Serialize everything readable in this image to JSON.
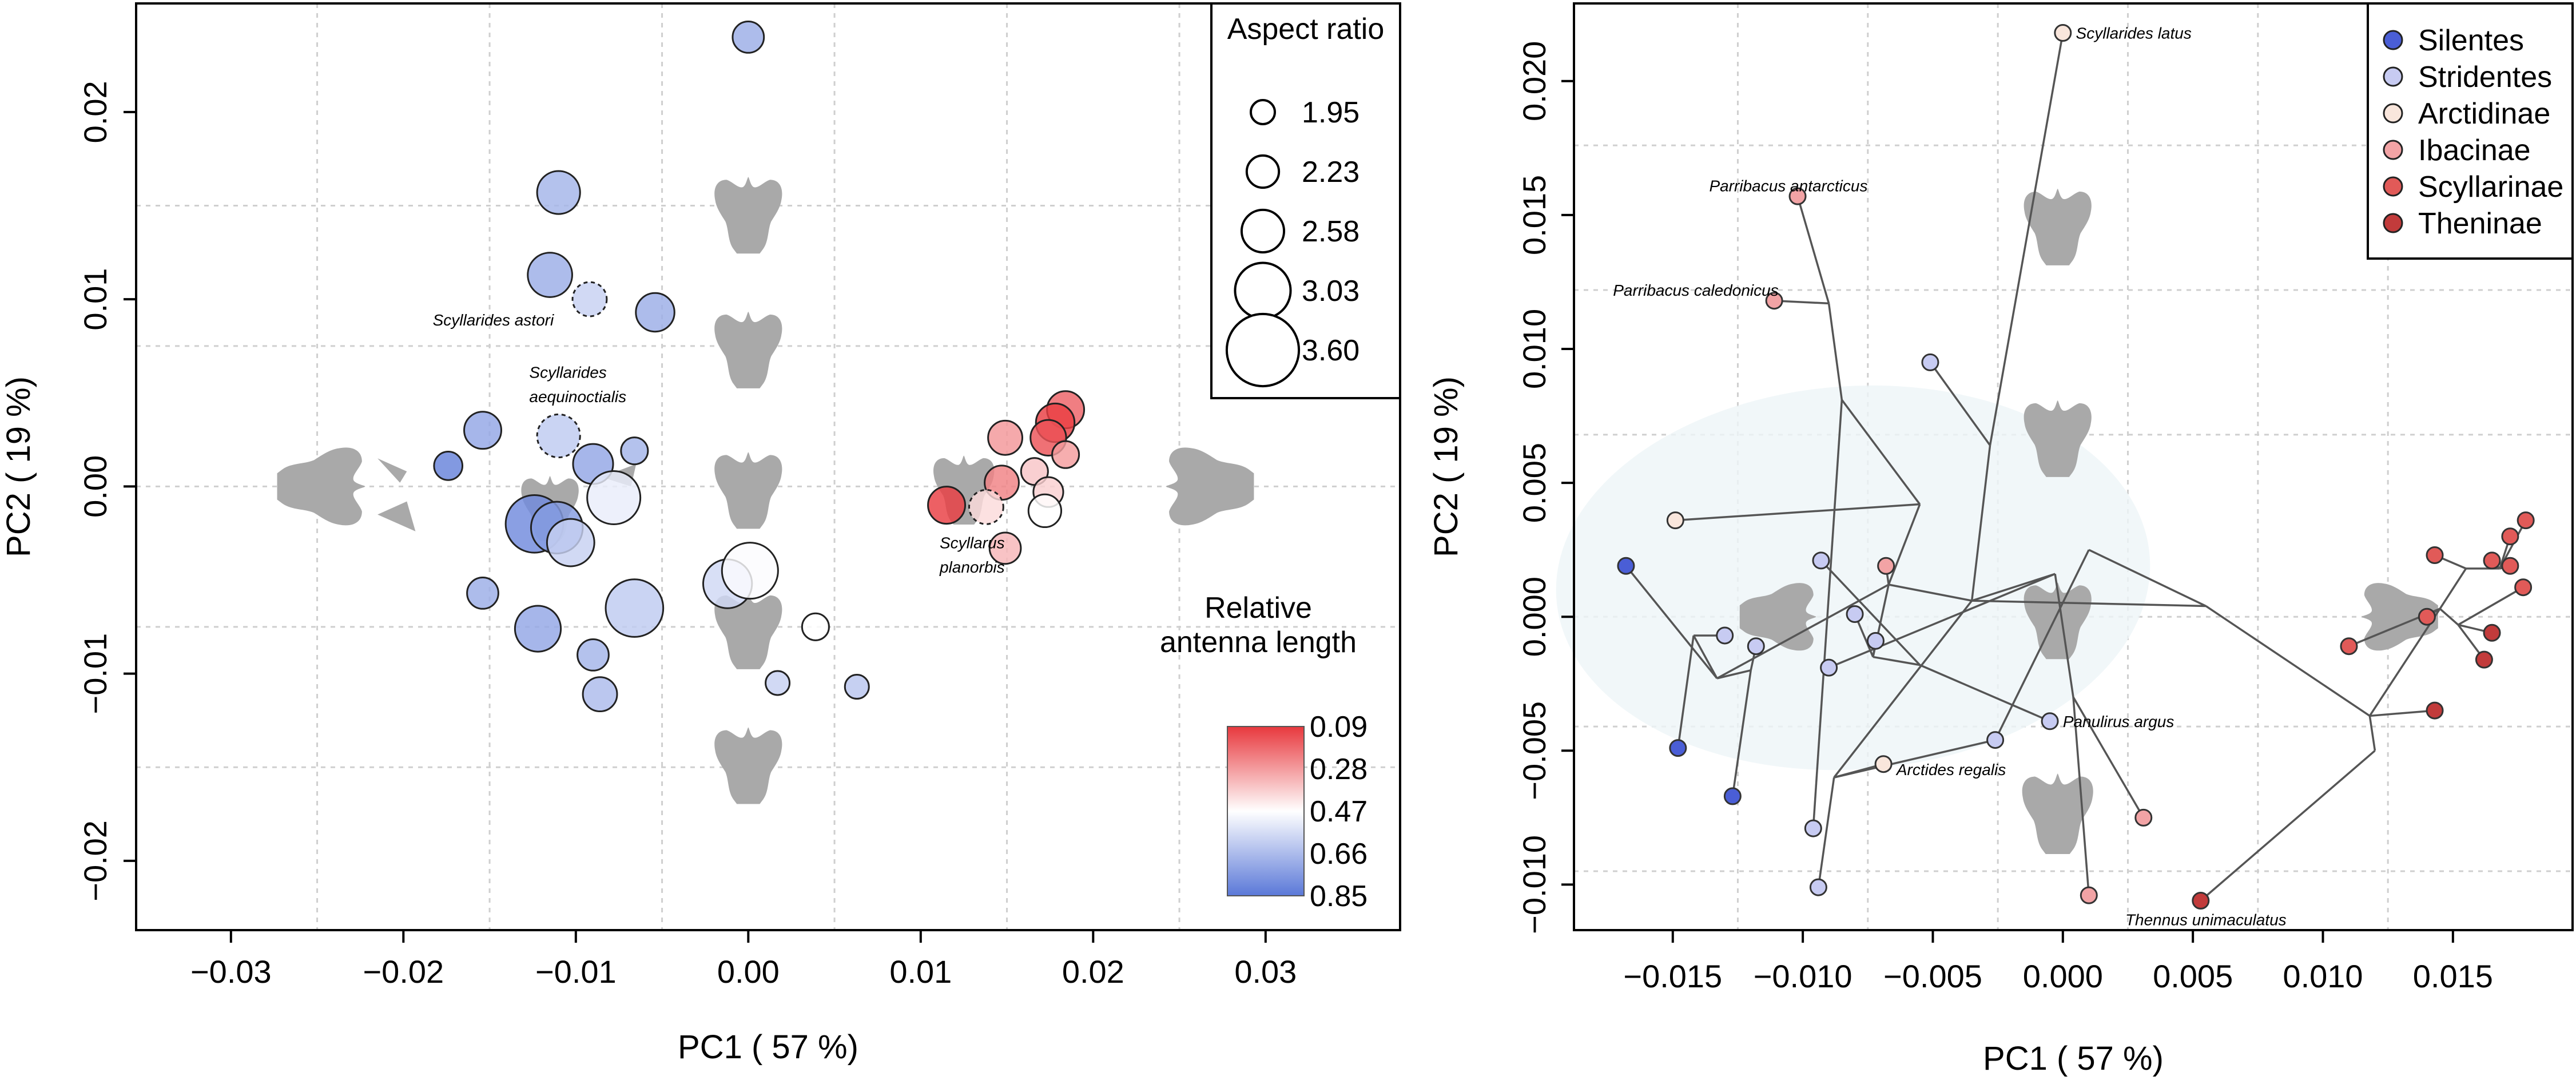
{
  "chart_data": [
    {
      "type": "scatter",
      "title": "",
      "xlabel": "PC1 ( 57 %)",
      "ylabel": "PC2 ( 19 %)",
      "xlim": [
        -0.0355,
        0.0378
      ],
      "ylim": [
        -0.0237,
        0.0258
      ],
      "xticks": [
        -0.03,
        -0.02,
        -0.01,
        0.0,
        0.01,
        0.02,
        0.03
      ],
      "xtick_labels": [
        "−0.03",
        "−0.02",
        "−0.01",
        "0.00",
        "0.01",
        "0.02",
        "0.03"
      ],
      "yticks": [
        -0.02,
        -0.01,
        0.0,
        0.01,
        0.02
      ],
      "ytick_labels": [
        "−0.02",
        "−0.01",
        "0.00",
        "0.01",
        "0.02"
      ],
      "grid": true,
      "size_legend": {
        "title": "Aspect ratio",
        "placement": "top-right",
        "values": [
          1.95,
          2.23,
          2.58,
          3.03,
          3.6
        ],
        "labels": [
          "1.95",
          "2.23",
          "2.58",
          "3.03",
          "3.60"
        ]
      },
      "color_legend": {
        "title_line1": "Relative",
        "title_line2": "antenna length",
        "placement": "bottom-right",
        "labels": [
          "0.09",
          "0.28",
          "0.47",
          "0.66",
          "0.85"
        ],
        "low_color": "#e8383d",
        "mid_color": "#ffffff",
        "high_color": "#5a78d8"
      },
      "points": [
        {
          "x": 0.0,
          "y": 0.024,
          "ar": 2.2,
          "al": 0.7
        },
        {
          "x": -0.011,
          "y": 0.0157,
          "ar": 2.6,
          "al": 0.68
        },
        {
          "x": -0.0115,
          "y": 0.0113,
          "ar": 2.65,
          "al": 0.7
        },
        {
          "x": -0.0092,
          "y": 0.01,
          "ar": 2.3,
          "al": 0.6,
          "dashed": true
        },
        {
          "x": -0.0054,
          "y": 0.0093,
          "ar": 2.45,
          "al": 0.7
        },
        {
          "x": -0.0154,
          "y": 0.003,
          "ar": 2.4,
          "al": 0.72
        },
        {
          "x": -0.0174,
          "y": 0.0011,
          "ar": 2.1,
          "al": 0.82
        },
        {
          "x": -0.011,
          "y": 0.0027,
          "ar": 2.6,
          "al": 0.62,
          "dashed": true
        },
        {
          "x": -0.009,
          "y": 0.0012,
          "ar": 2.5,
          "al": 0.72
        },
        {
          "x": -0.0066,
          "y": 0.0019,
          "ar": 2.05,
          "al": 0.68
        },
        {
          "x": -0.0124,
          "y": -0.002,
          "ar": 3.1,
          "al": 0.8
        },
        {
          "x": -0.0111,
          "y": -0.0022,
          "ar": 2.9,
          "al": 0.75
        },
        {
          "x": -0.0103,
          "y": -0.003,
          "ar": 2.75,
          "al": 0.6
        },
        {
          "x": -0.0078,
          "y": -0.0006,
          "ar": 2.95,
          "al": 0.52
        },
        {
          "x": -0.0154,
          "y": -0.0057,
          "ar": 2.2,
          "al": 0.7
        },
        {
          "x": -0.0122,
          "y": -0.0076,
          "ar": 2.7,
          "al": 0.72
        },
        {
          "x": -0.0066,
          "y": -0.0065,
          "ar": 3.1,
          "al": 0.62
        },
        {
          "x": -0.009,
          "y": -0.009,
          "ar": 2.2,
          "al": 0.68
        },
        {
          "x": -0.0086,
          "y": -0.0111,
          "ar": 2.3,
          "al": 0.66
        },
        {
          "x": -0.0012,
          "y": -0.0052,
          "ar": 2.8,
          "al": 0.58
        },
        {
          "x": 0.0001,
          "y": -0.0045,
          "ar": 3.05,
          "al": 0.48
        },
        {
          "x": 0.0039,
          "y": -0.0075,
          "ar": 2.05,
          "al": 0.47
        },
        {
          "x": 0.0017,
          "y": -0.0105,
          "ar": 1.95,
          "al": 0.6
        },
        {
          "x": 0.0063,
          "y": -0.0107,
          "ar": 1.95,
          "al": 0.63
        },
        {
          "x": 0.0184,
          "y": 0.0041,
          "ar": 2.4,
          "al": 0.17
        },
        {
          "x": 0.0178,
          "y": 0.0034,
          "ar": 2.45,
          "al": 0.1
        },
        {
          "x": 0.0174,
          "y": 0.0026,
          "ar": 2.35,
          "al": 0.14
        },
        {
          "x": 0.0149,
          "y": 0.0026,
          "ar": 2.3,
          "al": 0.27
        },
        {
          "x": 0.0184,
          "y": 0.0017,
          "ar": 2.05,
          "al": 0.28
        },
        {
          "x": 0.0166,
          "y": 0.0008,
          "ar": 2.05,
          "al": 0.36
        },
        {
          "x": 0.0174,
          "y": -0.0003,
          "ar": 2.15,
          "al": 0.38
        },
        {
          "x": 0.0147,
          "y": 0.0002,
          "ar": 2.3,
          "al": 0.23
        },
        {
          "x": 0.0115,
          "y": -0.001,
          "ar": 2.4,
          "al": 0.1
        },
        {
          "x": 0.0138,
          "y": -0.0011,
          "ar": 2.3,
          "al": 0.4,
          "dashed": true
        },
        {
          "x": 0.0172,
          "y": -0.0013,
          "ar": 2.25,
          "al": 0.47
        },
        {
          "x": 0.0149,
          "y": -0.0033,
          "ar": 2.2,
          "al": 0.33
        }
      ],
      "annotations": [
        {
          "text": "Scyllarides astori",
          "x": -0.0183,
          "y": 0.0086
        },
        {
          "text": "Scyllarides",
          "x": -0.0127,
          "y": 0.0058
        },
        {
          "text": "aequinoctialis",
          "x": -0.0127,
          "y": 0.0045
        },
        {
          "text": "Scyllarus",
          "x": 0.0111,
          "y": -0.0033
        },
        {
          "text": "planorbis",
          "x": 0.0111,
          "y": -0.0046
        }
      ]
    },
    {
      "type": "scatter",
      "title": "",
      "xlabel": "PC1 ( 57 %)",
      "ylabel": "PC2 ( 19 %)",
      "xlim": [
        -0.0188,
        0.0196
      ],
      "ylim": [
        -0.0117,
        0.0229
      ],
      "xticks": [
        -0.015,
        -0.01,
        -0.005,
        0.0,
        0.005,
        0.01,
        0.015
      ],
      "xtick_labels": [
        "−0.015",
        "−0.010",
        "−0.005",
        "0.000",
        "0.005",
        "0.010",
        "0.015"
      ],
      "yticks": [
        -0.01,
        -0.005,
        0.0,
        0.005,
        0.01,
        0.015,
        0.02
      ],
      "ytick_labels": [
        "−0.010",
        "−0.005",
        "0.000",
        "0.005",
        "0.010",
        "0.015",
        "0.020"
      ],
      "grid": true,
      "legend": {
        "placement": "top-right",
        "entries": [
          {
            "name": "Silentes",
            "color": "#4a5ed6"
          },
          {
            "name": "Stridentes",
            "color": "#c7cbf2"
          },
          {
            "name": "Arctidinae",
            "color": "#f9e6dc"
          },
          {
            "name": "Ibacinae",
            "color": "#f2a3a5"
          },
          {
            "name": "Scyllarinae",
            "color": "#e15a58"
          },
          {
            "name": "Theninae",
            "color": "#c23b3b"
          }
        ]
      },
      "points": [
        {
          "x": -0.0168,
          "y": 0.0019,
          "group": "Silentes"
        },
        {
          "x": -0.0148,
          "y": -0.0049,
          "group": "Silentes"
        },
        {
          "x": -0.0127,
          "y": -0.0067,
          "group": "Silentes"
        },
        {
          "x": -0.0093,
          "y": 0.0021,
          "group": "Stridentes"
        },
        {
          "x": -0.013,
          "y": -0.0007,
          "group": "Stridentes"
        },
        {
          "x": -0.0118,
          "y": -0.0011,
          "group": "Stridentes"
        },
        {
          "x": -0.008,
          "y": 0.0001,
          "group": "Stridentes"
        },
        {
          "x": -0.0072,
          "y": -0.0009,
          "group": "Stridentes"
        },
        {
          "x": -0.009,
          "y": -0.0019,
          "group": "Stridentes"
        },
        {
          "x": -0.0051,
          "y": 0.0095,
          "group": "Stridentes"
        },
        {
          "x": -0.0096,
          "y": -0.0079,
          "group": "Stridentes"
        },
        {
          "x": -0.0094,
          "y": -0.0101,
          "group": "Stridentes"
        },
        {
          "x": -0.0026,
          "y": -0.0046,
          "group": "Stridentes"
        },
        {
          "x": -0.0005,
          "y": -0.0039,
          "group": "Stridentes"
        },
        {
          "x": -0.0149,
          "y": 0.0036,
          "group": "Arctidinae"
        },
        {
          "x": 0.0,
          "y": 0.0218,
          "group": "Arctidinae"
        },
        {
          "x": -0.0069,
          "y": -0.0055,
          "group": "Arctidinae"
        },
        {
          "x": -0.0102,
          "y": 0.0157,
          "group": "Ibacinae"
        },
        {
          "x": -0.0111,
          "y": 0.0118,
          "group": "Ibacinae"
        },
        {
          "x": -0.0068,
          "y": 0.0019,
          "group": "Ibacinae"
        },
        {
          "x": 0.0031,
          "y": -0.0075,
          "group": "Ibacinae"
        },
        {
          "x": 0.001,
          "y": -0.0104,
          "group": "Ibacinae"
        },
        {
          "x": 0.0143,
          "y": 0.0023,
          "group": "Scyllarinae"
        },
        {
          "x": 0.0178,
          "y": 0.0036,
          "group": "Scyllarinae"
        },
        {
          "x": 0.0172,
          "y": 0.003,
          "group": "Scyllarinae"
        },
        {
          "x": 0.0165,
          "y": 0.0021,
          "group": "Scyllarinae"
        },
        {
          "x": 0.0172,
          "y": 0.0019,
          "group": "Scyllarinae"
        },
        {
          "x": 0.0177,
          "y": 0.0011,
          "group": "Scyllarinae"
        },
        {
          "x": 0.014,
          "y": 0.0,
          "group": "Scyllarinae"
        },
        {
          "x": 0.011,
          "y": -0.0011,
          "group": "Scyllarinae"
        },
        {
          "x": 0.0165,
          "y": -0.0006,
          "group": "Theninae"
        },
        {
          "x": 0.0162,
          "y": -0.0016,
          "group": "Theninae"
        },
        {
          "x": 0.0143,
          "y": -0.0035,
          "group": "Theninae"
        },
        {
          "x": 0.0053,
          "y": -0.0106,
          "group": "Theninae"
        }
      ],
      "annotations": [
        {
          "text": "Scyllarides latus",
          "x": 0.0005,
          "y": 0.0218
        },
        {
          "text": "Parribacus antarcticus",
          "x": -0.0136,
          "y": 0.0161
        },
        {
          "text": "Parribacus caledonicus",
          "x": -0.0173,
          "y": 0.0122
        },
        {
          "text": "Panulirus argus",
          "x": 0.0,
          "y": -0.0039
        },
        {
          "text": "Arctides regalis",
          "x": -0.0064,
          "y": -0.0057
        },
        {
          "text": "Thennus unimaculatus",
          "x": 0.0024,
          "y": -0.0113
        }
      ]
    }
  ]
}
